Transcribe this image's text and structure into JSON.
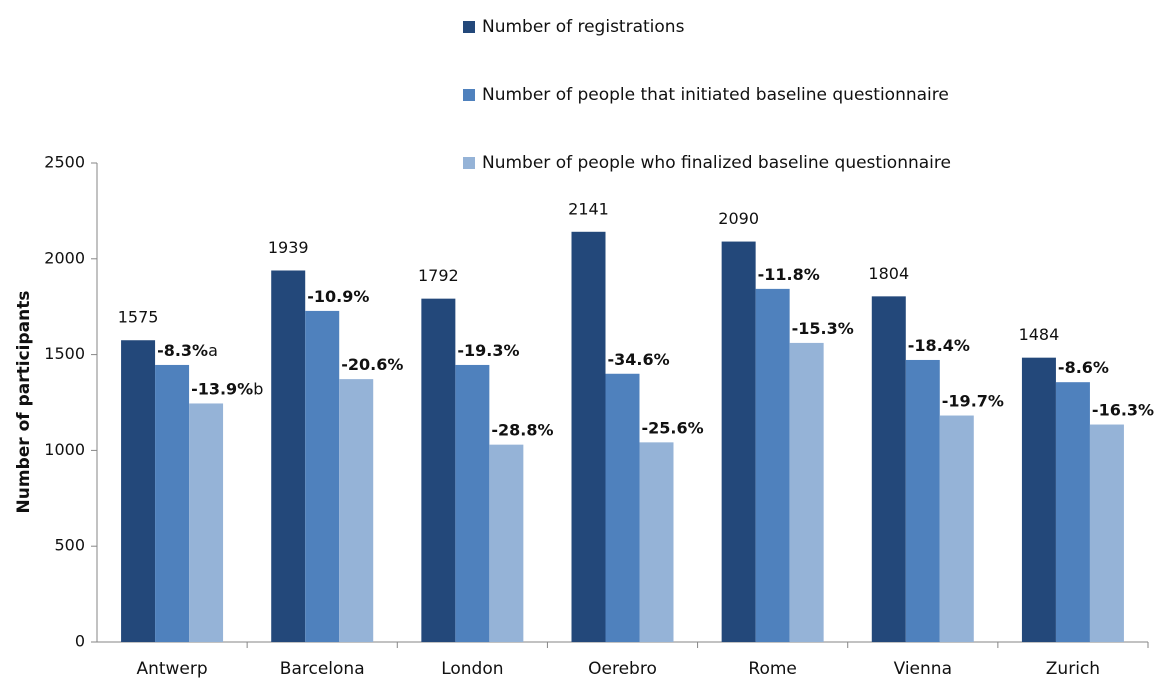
{
  "chart_data": {
    "type": "bar",
    "y_label": "Number of participants",
    "categories": [
      "Antwerp",
      "Barcelona",
      "London",
      "Oerebro",
      "Rome",
      "Vienna",
      "Zurich"
    ],
    "series": [
      {
        "name": "Number of registrations",
        "color": "#23487a",
        "values": [
          1575,
          1939,
          1792,
          2141,
          2090,
          1804,
          1484
        ]
      },
      {
        "name": "Number of people that initiated baseline questionnaire",
        "color": "#4f81bd",
        "values": [
          1446,
          1728,
          1446,
          1400,
          1843,
          1472,
          1356
        ],
        "change_labels": [
          "-8.3%",
          "-10.9%",
          "-19.3%",
          "-34.6%",
          "-11.8%",
          "-18.4%",
          "-8.6%"
        ],
        "change_notes": [
          "a",
          null,
          null,
          null,
          null,
          null,
          null
        ]
      },
      {
        "name": "Number of people who finalized baseline questionnaire",
        "color": "#95b3d7",
        "values": [
          1245,
          1372,
          1030,
          1042,
          1561,
          1182,
          1135
        ],
        "change_labels": [
          "-13.9%",
          "-20.6%",
          "-28.8%",
          "-25.6%",
          "-15.3%",
          "-19.7%",
          "-16.3%"
        ],
        "change_notes": [
          "b",
          null,
          null,
          null,
          null,
          null,
          null
        ]
      }
    ],
    "ylim": [
      0,
      2500
    ],
    "yticks": [
      0,
      500,
      1000,
      1500,
      2000,
      2500
    ],
    "grid": false,
    "legend": "top"
  }
}
